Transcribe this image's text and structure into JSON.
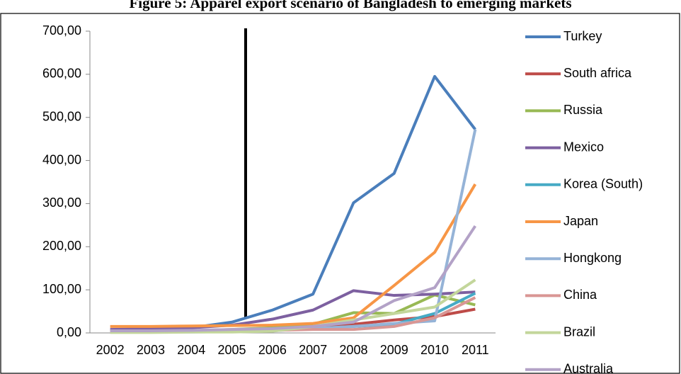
{
  "chart_data": {
    "type": "line",
    "title": "Figure 5: Apparel export scenario of Bangladesh to emerging markets",
    "categories": [
      "2002",
      "2003",
      "2004",
      "2005",
      "2006",
      "2007",
      "2008",
      "2009",
      "2010",
      "2011"
    ],
    "ylim": [
      0,
      700
    ],
    "yticks": [
      {
        "value": 0,
        "label": "0,00"
      },
      {
        "value": 100,
        "label": "100,00"
      },
      {
        "value": 200,
        "label": "200,00"
      },
      {
        "value": 300,
        "label": "300,00"
      },
      {
        "value": 400,
        "label": "400,00"
      },
      {
        "value": 500,
        "label": "500,00"
      },
      {
        "value": 600,
        "label": "600,00"
      },
      {
        "value": 700,
        "label": "700,00"
      }
    ],
    "legend": "right",
    "series": [
      {
        "name": "Turkey",
        "color": "#4a7ebb",
        "values": [
          5,
          8,
          12,
          25,
          53,
          90,
          302,
          370,
          595,
          472
        ]
      },
      {
        "name": "South africa",
        "color": "#be4b48",
        "values": [
          2,
          3,
          4,
          6,
          10,
          15,
          20,
          30,
          38,
          55
        ]
      },
      {
        "name": "Russia",
        "color": "#98b954",
        "values": [
          3,
          4,
          5,
          8,
          12,
          20,
          47,
          45,
          88,
          65
        ]
      },
      {
        "name": "Mexico",
        "color": "#7d60a0",
        "values": [
          8,
          10,
          12,
          18,
          32,
          53,
          98,
          87,
          90,
          95
        ]
      },
      {
        "name": "Korea (South)",
        "color": "#46aac5",
        "values": [
          2,
          2,
          3,
          4,
          6,
          10,
          15,
          20,
          45,
          92
        ]
      },
      {
        "name": "Japan",
        "color": "#f79646",
        "values": [
          15,
          15,
          16,
          17,
          18,
          22,
          35,
          110,
          187,
          345
        ]
      },
      {
        "name": "Hongkong",
        "color": "#95b3d7",
        "values": [
          2,
          2,
          2,
          3,
          5,
          10,
          15,
          22,
          28,
          472
        ]
      },
      {
        "name": "China",
        "color": "#d99694",
        "values": [
          3,
          3,
          4,
          5,
          6,
          8,
          8,
          15,
          35,
          82
        ]
      },
      {
        "name": "Brazil",
        "color": "#c3d69b",
        "values": [
          1,
          1,
          2,
          2,
          4,
          15,
          30,
          45,
          60,
          123
        ]
      },
      {
        "name": "Australia",
        "color": "#b3a2c7",
        "values": [
          5,
          5,
          6,
          8,
          10,
          15,
          25,
          75,
          105,
          248
        ]
      }
    ]
  }
}
